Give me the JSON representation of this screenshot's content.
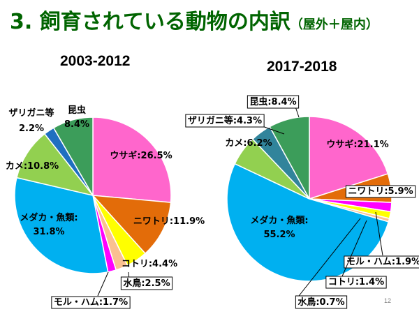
{
  "title": "3. 飼育されている動物の内訳",
  "title_sub": "（屋外＋屋内）",
  "page_number": "12",
  "chart_data": [
    {
      "type": "pie",
      "title": "2003-2012",
      "slices": [
        {
          "name": "ウサギ",
          "value": 26.5,
          "label": "ウサギ:26.5%",
          "color": "#FF66CC"
        },
        {
          "name": "ニワトリ",
          "value": 11.9,
          "label": "ニワトリ:11.9%",
          "color": "#E36C09"
        },
        {
          "name": "コトリ",
          "value": 4.4,
          "label": "コトリ:4.4%",
          "color": "#FFFF00"
        },
        {
          "name": "水鳥",
          "value": 2.5,
          "label": "水鳥:2.5%",
          "color": "#FAC090"
        },
        {
          "name": "モル・ハム",
          "value": 1.7,
          "label": "モル・ハム:1.7%",
          "color": "#FF00FF"
        },
        {
          "name": "メダカ・魚類",
          "value": 31.8,
          "label": "メダカ・魚類:",
          "label2": "31.8%",
          "color": "#00B0F0"
        },
        {
          "name": "カメ",
          "value": 10.8,
          "label": "カメ:10.8%",
          "color": "#92D050"
        },
        {
          "name": "ザリガニ等",
          "value": 2.2,
          "label": "ザリガニ等",
          "label2": "2.2%",
          "color": "#1F6FC0"
        },
        {
          "name": "昆虫",
          "value": 8.4,
          "label": "昆虫",
          "label2": "8.4%",
          "color": "#3C9D5A"
        }
      ]
    },
    {
      "type": "pie",
      "title": "2017-2018",
      "slices": [
        {
          "name": "ウサギ",
          "value": 21.1,
          "label": "ウサギ:21.1%",
          "color": "#FF66CC"
        },
        {
          "name": "ニワトリ",
          "value": 5.9,
          "label": "ニワトリ:5.9%",
          "color": "#E36C09"
        },
        {
          "name": "モル・ハム",
          "value": 1.9,
          "label": "モル・ハム:1.9%",
          "color": "#FF00FF"
        },
        {
          "name": "コトリ",
          "value": 1.4,
          "label": "コトリ:1.4%",
          "color": "#FFFF00"
        },
        {
          "name": "水鳥",
          "value": 0.7,
          "label": "水鳥:0.7%",
          "color": "#FAC090"
        },
        {
          "name": "メダカ・魚類",
          "value": 55.2,
          "label": "メダカ・魚類:",
          "label2": "55.2%",
          "color": "#00B0F0"
        },
        {
          "name": "カメ",
          "value": 6.2,
          "label": "カメ:6.2%",
          "color": "#92D050"
        },
        {
          "name": "ザリガニ等",
          "value": 4.3,
          "label": "ザリガニ等:4.3%",
          "color": "#31849B"
        },
        {
          "name": "昆虫",
          "value": 8.4,
          "label": "昆虫:8.4%",
          "color": "#3C9D5A"
        }
      ]
    }
  ]
}
